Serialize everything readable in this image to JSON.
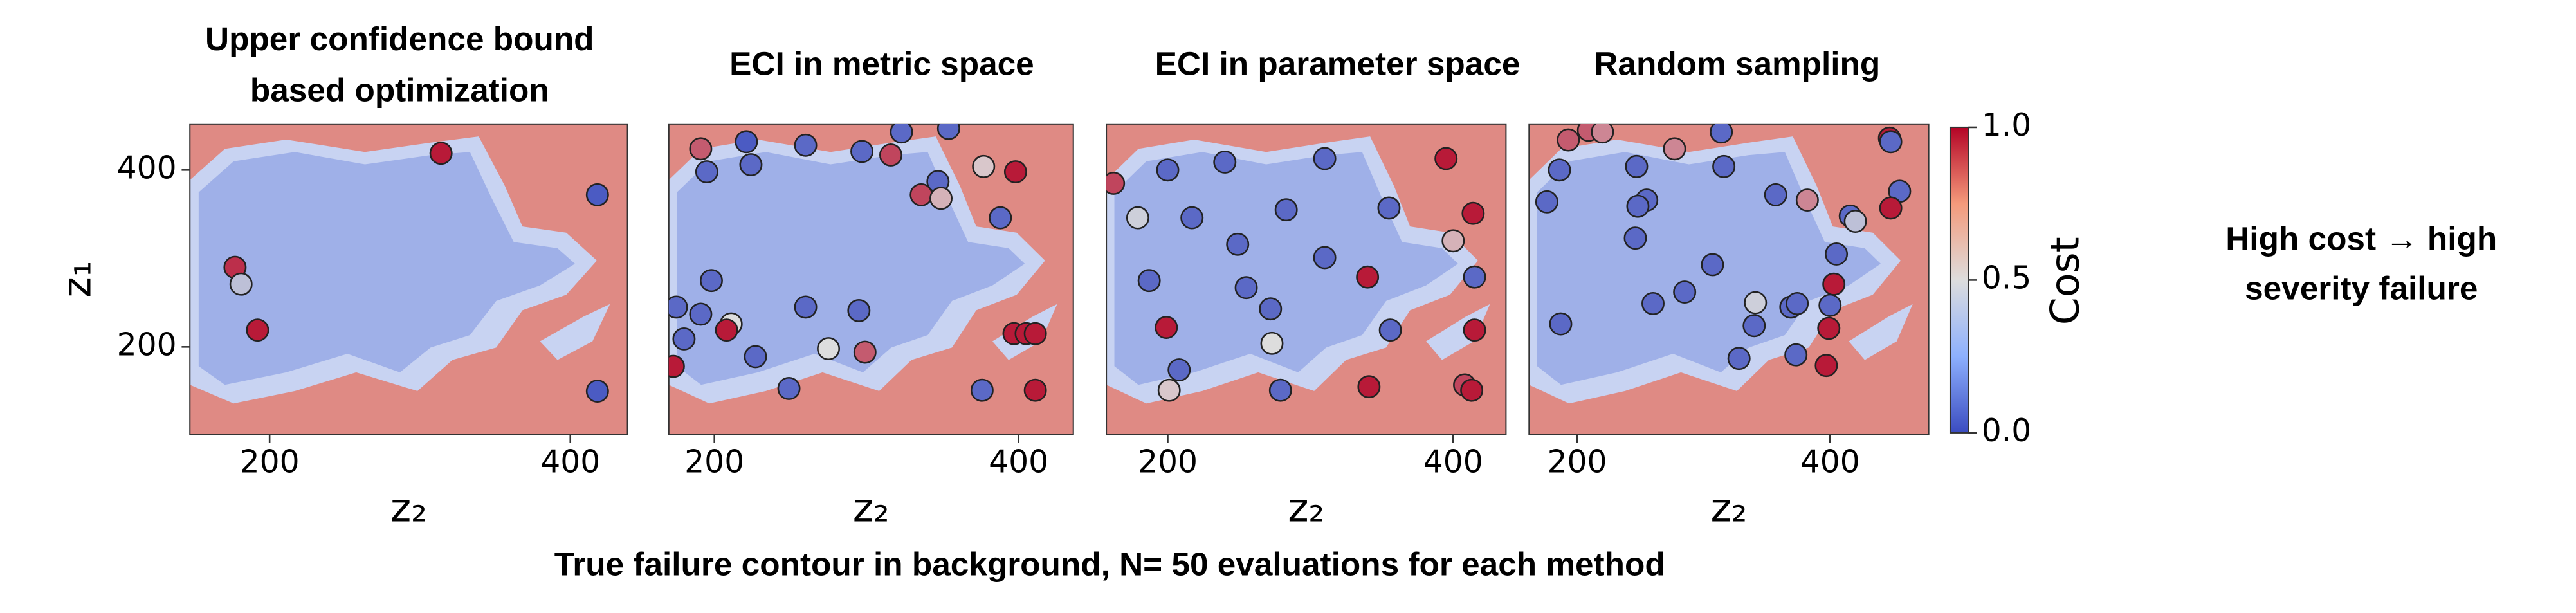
{
  "chart_data": [
    {
      "type": "scatter",
      "title": [
        "Upper confidence bound",
        "based optimization"
      ],
      "x_label": "z₂",
      "y_label": "z₁",
      "xlim": [
        147,
        438
      ],
      "ylim": [
        101,
        452
      ],
      "xticks": [
        200,
        400
      ],
      "yticks": [
        200,
        400
      ],
      "x": [
        314,
        418,
        177,
        181,
        192,
        418
      ],
      "values": [
        419,
        372,
        290,
        271,
        219,
        150
      ],
      "color_values": [
        0.95,
        0.05,
        0.9,
        0.4,
        0.95,
        0.05
      ]
    },
    {
      "type": "scatter",
      "title": [
        "ECI in metric space"
      ],
      "x_label": "z₂",
      "xlim": [
        170,
        436
      ],
      "ylim": [
        101,
        452
      ],
      "xticks": [
        200,
        400
      ],
      "x": [
        191,
        221,
        260,
        297,
        323,
        354,
        195,
        224,
        316,
        377,
        398,
        347,
        336,
        349,
        388,
        198,
        175,
        191,
        211,
        208,
        260,
        295,
        180,
        227,
        275,
        299,
        397,
        405,
        411,
        173,
        249,
        376,
        411
      ],
      "values": [
        424,
        432,
        428,
        421,
        443,
        447,
        398,
        406,
        417,
        404,
        398,
        387,
        372,
        368,
        346,
        275,
        245,
        237,
        226,
        219,
        245,
        241,
        209,
        189,
        198,
        194,
        215,
        215,
        215,
        178,
        153,
        151,
        151
      ],
      "color_values": [
        0.8,
        0.05,
        0.1,
        0.1,
        0.1,
        0.1,
        0.1,
        0.1,
        0.85,
        0.55,
        0.95,
        0.1,
        0.85,
        0.6,
        0.1,
        0.1,
        0.1,
        0.1,
        0.5,
        0.95,
        0.1,
        0.1,
        0.1,
        0.1,
        0.5,
        0.8,
        0.95,
        0.95,
        0.95,
        0.95,
        0.1,
        0.1,
        0.95
      ]
    },
    {
      "type": "scatter",
      "title": [
        "ECI in parameter space"
      ],
      "x_label": "z₂",
      "xlim": [
        157,
        437
      ],
      "ylim": [
        101,
        452
      ],
      "xticks": [
        200,
        400
      ],
      "x": [
        162,
        200,
        240,
        310,
        395,
        179,
        217,
        249,
        283,
        355,
        414,
        187,
        255,
        310,
        340,
        400,
        415,
        272,
        199,
        208,
        273,
        356,
        415,
        201,
        279,
        341,
        408,
        413
      ],
      "values": [
        385,
        400,
        409,
        413,
        413,
        346,
        346,
        316,
        355,
        357,
        351,
        275,
        267,
        301,
        279,
        320,
        279,
        243,
        222,
        174,
        204,
        219,
        219,
        151,
        151,
        155,
        157,
        151
      ],
      "color_values": [
        0.85,
        0.1,
        0.1,
        0.1,
        0.95,
        0.45,
        0.1,
        0.1,
        0.1,
        0.1,
        0.95,
        0.1,
        0.1,
        0.1,
        0.95,
        0.6,
        0.1,
        0.1,
        0.95,
        0.1,
        0.5,
        0.1,
        0.95,
        0.55,
        0.1,
        0.95,
        0.85,
        0.95
      ]
    },
    {
      "type": "scatter",
      "title": [
        "Random sampling"
      ],
      "x_label": "z₂",
      "xlim": [
        162,
        478
      ],
      "ylim": [
        101,
        452
      ],
      "xticks": [
        200,
        400
      ],
      "x": [
        193,
        209,
        220,
        277,
        314,
        447,
        448,
        186,
        247,
        176,
        255,
        316,
        357,
        382,
        455,
        416,
        420,
        448,
        248,
        246,
        307,
        405,
        260,
        285,
        341,
        369,
        374,
        400,
        403,
        187,
        340,
        399,
        373,
        328,
        397
      ],
      "values": [
        434,
        445,
        443,
        424,
        443,
        436,
        432,
        400,
        404,
        364,
        366,
        404,
        372,
        366,
        376,
        348,
        342,
        357,
        359,
        323,
        293,
        305,
        249,
        262,
        250,
        245,
        249,
        247,
        271,
        226,
        224,
        221,
        191,
        187,
        179
      ],
      "color_values": [
        0.8,
        0.8,
        0.7,
        0.7,
        0.1,
        0.95,
        0.1,
        0.1,
        0.1,
        0.1,
        0.1,
        0.1,
        0.1,
        0.7,
        0.1,
        0.1,
        0.4,
        0.95,
        0.1,
        0.1,
        0.1,
        0.1,
        0.1,
        0.1,
        0.45,
        0.1,
        0.1,
        0.1,
        0.95,
        0.1,
        0.1,
        0.95,
        0.1,
        0.1,
        0.95
      ]
    }
  ],
  "colorbar": {
    "label": "Cost",
    "lim": [
      0,
      1
    ],
    "ticks": [
      {
        "value": 0,
        "label": "0.0"
      },
      {
        "value": 0.5,
        "label": "0.5"
      },
      {
        "value": 1,
        "label": "1.0"
      }
    ]
  },
  "caption": "True failure contour in background, N= 50 evaluations for each method",
  "note": [
    "High cost → high",
    "severity failure"
  ]
}
